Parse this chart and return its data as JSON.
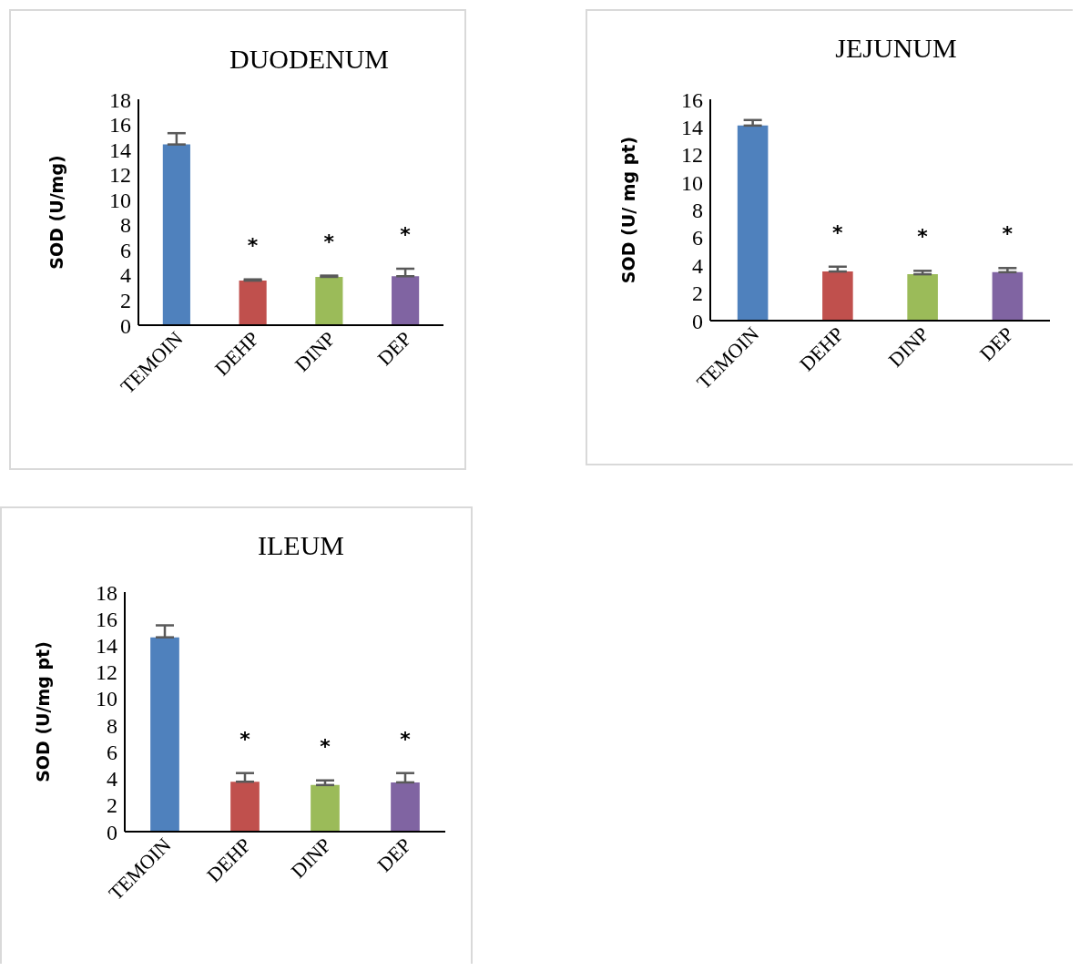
{
  "chart_data": [
    {
      "type": "bar",
      "title": "DUODENUM",
      "ylabel": "SOD (U/mg)",
      "categories": [
        "TEMOIN",
        "DEHP",
        "DINP",
        "DEP"
      ],
      "values": [
        14.4,
        3.55,
        3.85,
        3.9
      ],
      "colors": [
        "#4f81bd",
        "#c0504d",
        "#9bbb59",
        "#8064a2"
      ],
      "errors": [
        [
          14.4,
          15.3
        ],
        [
          3.55,
          3.65
        ],
        [
          3.85,
          3.95
        ],
        [
          3.9,
          4.5
        ]
      ],
      "ylim": [
        0,
        18
      ],
      "yticks": [
        0,
        2,
        4,
        6,
        8,
        10,
        12,
        14,
        16,
        18
      ],
      "grid": false,
      "legend": false,
      "annotations": [
        "*",
        "*",
        "*"
      ]
    },
    {
      "type": "bar",
      "title": "JEJUNUM",
      "ylabel": "SOD (U/ mg pt)",
      "categories": [
        "TEMOIN",
        "DEHP",
        "DINP",
        "DEP"
      ],
      "values": [
        14.1,
        3.55,
        3.35,
        3.5
      ],
      "colors": [
        "#4f81bd",
        "#c0504d",
        "#9bbb59",
        "#8064a2"
      ],
      "errors": [
        [
          14.1,
          14.5
        ],
        [
          3.55,
          3.9
        ],
        [
          3.35,
          3.6
        ],
        [
          3.5,
          3.8
        ]
      ],
      "ylim": [
        0,
        16
      ],
      "yticks": [
        0,
        2,
        4,
        6,
        8,
        10,
        12,
        14,
        16
      ],
      "grid": false,
      "legend": false,
      "annotations": [
        "*",
        "*",
        "*"
      ]
    },
    {
      "type": "bar",
      "title": "ILEUM",
      "ylabel": "SOD (U/mg pt)",
      "categories": [
        "TEMOIN",
        "DEHP",
        "DINP",
        "DEP"
      ],
      "values": [
        14.6,
        3.75,
        3.5,
        3.7
      ],
      "colors": [
        "#4f81bd",
        "#c0504d",
        "#9bbb59",
        "#8064a2"
      ],
      "errors": [
        [
          14.6,
          15.5
        ],
        [
          3.75,
          4.4
        ],
        [
          3.5,
          3.85
        ],
        [
          3.7,
          4.4
        ]
      ],
      "ylim": [
        0,
        18
      ],
      "yticks": [
        0,
        2,
        4,
        6,
        8,
        10,
        12,
        14,
        16,
        18
      ],
      "grid": false,
      "legend": false,
      "annotations": [
        "*",
        "*",
        "*"
      ]
    }
  ]
}
